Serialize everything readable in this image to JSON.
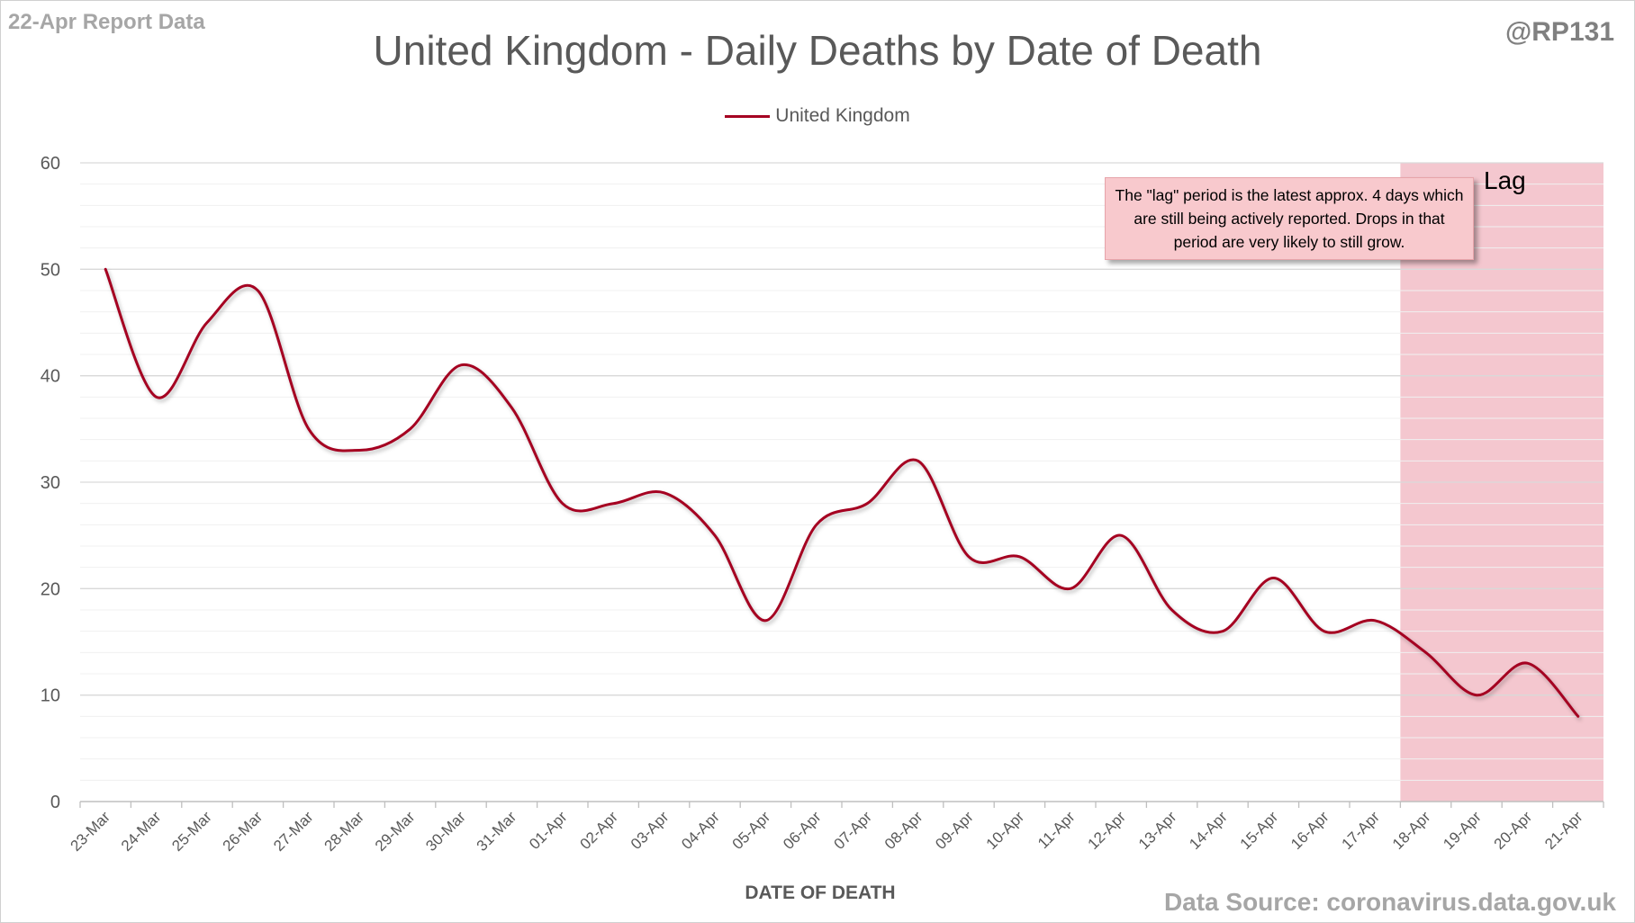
{
  "report_label": "22-Apr Report Data",
  "handle": "@RP131",
  "source": "Data Source: coronavirus.data.gov.uk",
  "chart_data": {
    "type": "line",
    "title": "United Kingdom - Daily Deaths by Date of Death",
    "xlabel": "DATE OF DEATH",
    "ylabel": "",
    "ylim": [
      0,
      60
    ],
    "yticks": [
      0,
      10,
      20,
      30,
      40,
      50,
      60
    ],
    "grid": true,
    "legend_position": "top-center",
    "categories": [
      "23-Mar",
      "24-Mar",
      "25-Mar",
      "26-Mar",
      "27-Mar",
      "28-Mar",
      "29-Mar",
      "30-Mar",
      "31-Mar",
      "01-Apr",
      "02-Apr",
      "03-Apr",
      "04-Apr",
      "05-Apr",
      "06-Apr",
      "07-Apr",
      "08-Apr",
      "09-Apr",
      "10-Apr",
      "11-Apr",
      "12-Apr",
      "13-Apr",
      "14-Apr",
      "15-Apr",
      "16-Apr",
      "17-Apr",
      "18-Apr",
      "19-Apr",
      "20-Apr",
      "21-Apr"
    ],
    "series": [
      {
        "name": "United Kingdom",
        "color": "#a50021",
        "values": [
          50,
          38,
          45,
          48,
          35,
          33,
          35,
          41,
          37,
          28,
          28,
          29,
          25,
          17,
          26,
          28,
          32,
          23,
          23,
          20,
          25,
          18,
          16,
          21,
          16,
          17,
          14,
          10,
          13,
          8
        ]
      }
    ],
    "lag_period": {
      "start": "18-Apr",
      "end": "21-Apr",
      "label": "Lag",
      "color": "#f4c7cf",
      "note": "The \"lag\" period is the latest approx. 4 days which are still being actively reported. Drops in that period are very likely to still grow."
    }
  }
}
